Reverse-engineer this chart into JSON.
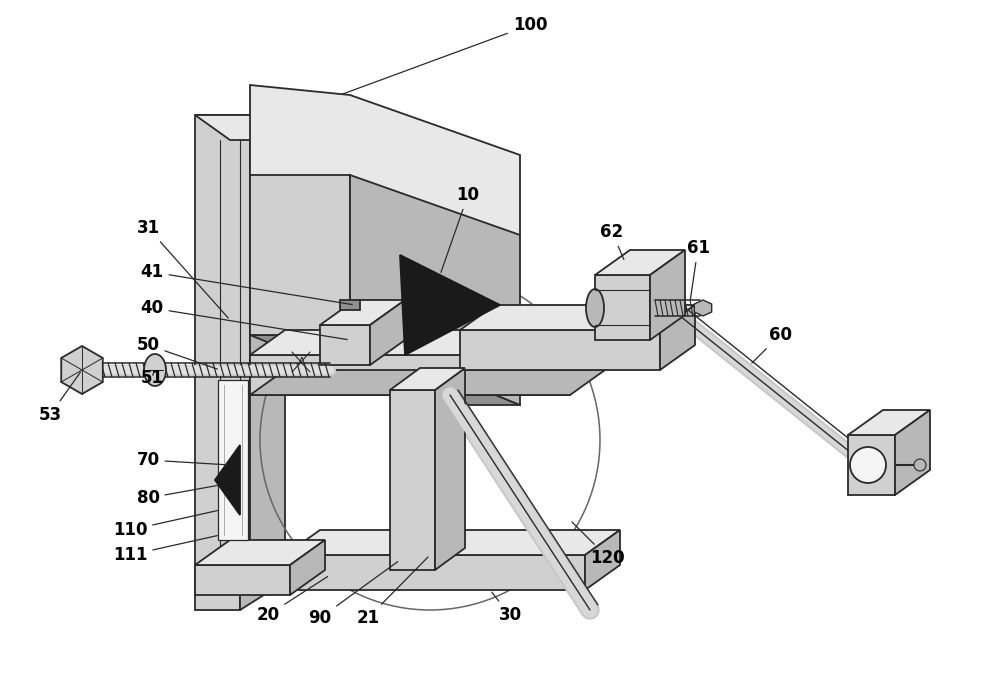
{
  "bg_color": "#ffffff",
  "lc": "#2a2a2a",
  "fc_light": "#e8e8e8",
  "fc_mid": "#d0d0d0",
  "fc_dark": "#b8b8b8",
  "fc_vdark": "#909090",
  "fc_white": "#f5f5f5",
  "fc_black": "#1a1a1a",
  "figsize": [
    10.0,
    6.95
  ],
  "dpi": 100,
  "lw": 1.3,
  "label_fs": 12
}
